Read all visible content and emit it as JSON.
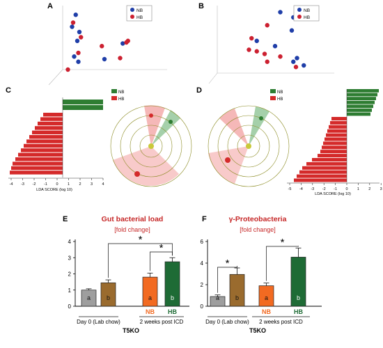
{
  "panels": {
    "A": "A",
    "B": "B",
    "C": "C",
    "D": "D",
    "E": "E",
    "F": "F"
  },
  "legend": {
    "nb": "NB",
    "hb": "HB"
  },
  "colors": {
    "nb_dot": "#1f3ea8",
    "hb_dot": "#cc2030",
    "nb_green": "#2e7d32",
    "hb_red": "#d42a2a",
    "lab_gray": "#9e9e9e",
    "lab_brown": "#9a6b2e",
    "icd_orange": "#f26a21",
    "icd_green": "#1e6b35",
    "title_red": "#c62828"
  },
  "lefse": {
    "xlabel": "LDA SCORE (log 10)",
    "C_ticks": [
      "-4",
      "-3",
      "-2",
      "-1",
      "0",
      "1",
      "2",
      "3",
      "4"
    ],
    "D_ticks": [
      "-5",
      "-4",
      "-3",
      "-2",
      "-1",
      "0",
      "1",
      "2",
      "3"
    ]
  },
  "chart_data": [
    {
      "panel": "A",
      "type": "scatter",
      "series": [
        {
          "name": "NB",
          "points": [
            [
              -0.55,
              0.85
            ],
            [
              -0.62,
              0.62
            ],
            [
              -0.48,
              0.52
            ],
            [
              -0.52,
              0.35
            ],
            [
              -0.58,
              0.05
            ],
            [
              -0.5,
              -0.05
            ],
            [
              0.35,
              0.3
            ],
            [
              0.0,
              0.0
            ]
          ]
        },
        {
          "name": "HB",
          "points": [
            [
              -0.6,
              0.7
            ],
            [
              -0.45,
              0.42
            ],
            [
              -0.5,
              0.12
            ],
            [
              0.45,
              0.35
            ],
            [
              0.42,
              0.32
            ],
            [
              0.3,
              0.02
            ],
            [
              -0.7,
              -0.2
            ],
            [
              -0.05,
              0.25
            ]
          ]
        }
      ]
    },
    {
      "panel": "B",
      "type": "scatter",
      "series": [
        {
          "name": "NB",
          "points": [
            [
              0.3,
              0.9
            ],
            [
              0.55,
              0.8
            ],
            [
              0.52,
              0.55
            ],
            [
              0.2,
              0.25
            ],
            [
              0.62,
              0.02
            ],
            [
              0.55,
              -0.05
            ],
            [
              0.75,
              -0.12
            ],
            [
              -0.15,
              0.35
            ]
          ]
        },
        {
          "name": "HB",
          "points": [
            [
              0.05,
              0.65
            ],
            [
              -0.25,
              0.4
            ],
            [
              -0.3,
              0.18
            ],
            [
              0.0,
              0.1
            ],
            [
              0.05,
              -0.05
            ],
            [
              -0.15,
              0.15
            ],
            [
              0.6,
              -0.15
            ],
            [
              0.3,
              0.05
            ]
          ]
        }
      ]
    },
    {
      "panel": "E",
      "type": "bar",
      "title": "Gut bacterial load",
      "subtitle": "[fold change]",
      "ylim": [
        0,
        4
      ],
      "yticks": [
        "0",
        "1",
        "2",
        "3",
        "4"
      ],
      "categories": [
        "Day 0 (Lab chow)",
        "2 weeks post ICD"
      ],
      "group_label": "T5KO",
      "bars": [
        {
          "value": 1.0,
          "error": 0.08,
          "letter": "a",
          "label": ""
        },
        {
          "value": 1.45,
          "error": 0.18,
          "letter": "b",
          "label": ""
        },
        {
          "value": 1.8,
          "error": 0.25,
          "letter": "a",
          "label": "NB"
        },
        {
          "value": 2.75,
          "error": 0.25,
          "letter": "b",
          "label": "HB"
        }
      ],
      "sig": [
        "*",
        "*"
      ]
    },
    {
      "panel": "F",
      "type": "bar",
      "title": "γ-Proteobacteria",
      "subtitle": "[fold change]",
      "ylim": [
        0,
        6
      ],
      "yticks": [
        "0",
        "2",
        "4",
        "6"
      ],
      "categories": [
        "Day 0 (Lab chow)",
        "2 weeks post ICD"
      ],
      "group_label": "T5KO",
      "bars": [
        {
          "value": 0.9,
          "error": 0.15,
          "letter": "a",
          "label": ""
        },
        {
          "value": 2.95,
          "error": 0.6,
          "letter": "b",
          "label": ""
        },
        {
          "value": 1.9,
          "error": 0.25,
          "letter": "a",
          "label": "NB"
        },
        {
          "value": 4.55,
          "error": 0.85,
          "letter": "b",
          "label": "HB"
        }
      ],
      "sig": [
        "*",
        "*"
      ]
    }
  ]
}
